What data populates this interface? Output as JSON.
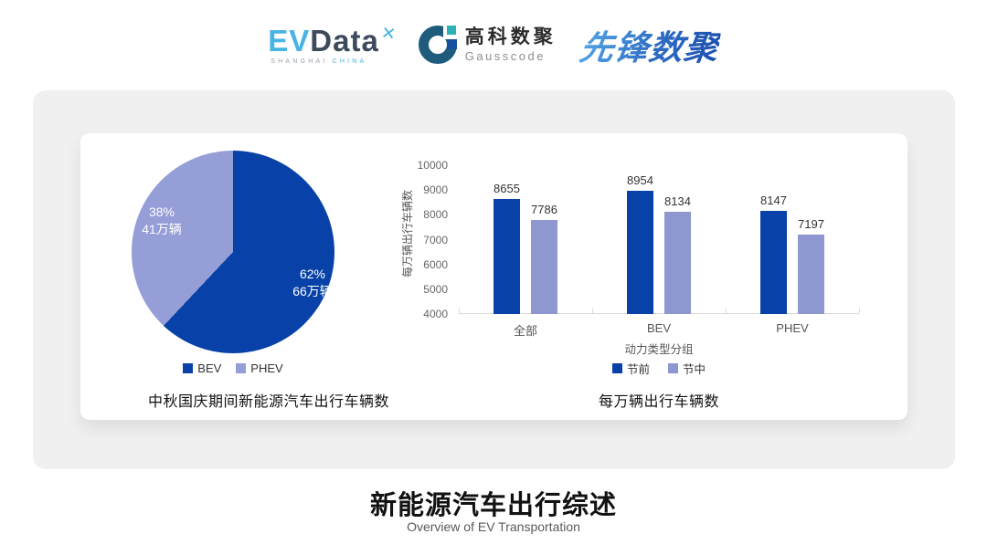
{
  "header": {
    "logos": {
      "evdata": {
        "ev": "EV",
        "data": "Data",
        "mark": "✕",
        "sub_left": "SHANGHAI",
        "sub_right": "CHINA"
      },
      "gausscode": {
        "cn": "高科数聚",
        "en": "Gausscode"
      },
      "xianfeng": {
        "text": "先锋数聚"
      }
    }
  },
  "colors": {
    "primary": "#0842a8",
    "secondary": "#8e97d0",
    "pie_secondary": "#959ed6",
    "brand_cyan": "#47b4e3",
    "brand_slate": "#3d4a5c",
    "panel_bg": "#f0f0f0"
  },
  "chart_data": [
    {
      "type": "pie",
      "title": "中秋国庆期间新能源汽车出行车辆数",
      "slices": [
        {
          "name": "BEV",
          "percent": 62,
          "pct_label": "62%",
          "value_label": "66万辆",
          "color": "#0842a8"
        },
        {
          "name": "PHEV",
          "percent": 38,
          "pct_label": "38%",
          "value_label": "41万辆",
          "color": "#959ed6"
        }
      ],
      "legend_position": "bottom",
      "start_angle": "top",
      "direction": "clockwise"
    },
    {
      "type": "bar",
      "title": "每万辆出行车辆数",
      "categories": [
        "全部",
        "BEV",
        "PHEV"
      ],
      "series": [
        {
          "name": "节前",
          "values": [
            8655,
            8954,
            8147
          ],
          "color": "#0842a8"
        },
        {
          "name": "节中",
          "values": [
            7786,
            8134,
            7197
          ],
          "color": "#8e97d0"
        }
      ],
      "xlabel": "动力类型分组",
      "ylabel": "每万辆出行车辆数",
      "ylim": [
        4000,
        10000
      ],
      "yticks": [
        4000,
        5000,
        6000,
        7000,
        8000,
        9000,
        10000
      ],
      "grid": false,
      "legend_position": "bottom"
    }
  ],
  "footer": {
    "title": "新能源汽车出行综述",
    "subtitle": "Overview of EV Transportation"
  }
}
